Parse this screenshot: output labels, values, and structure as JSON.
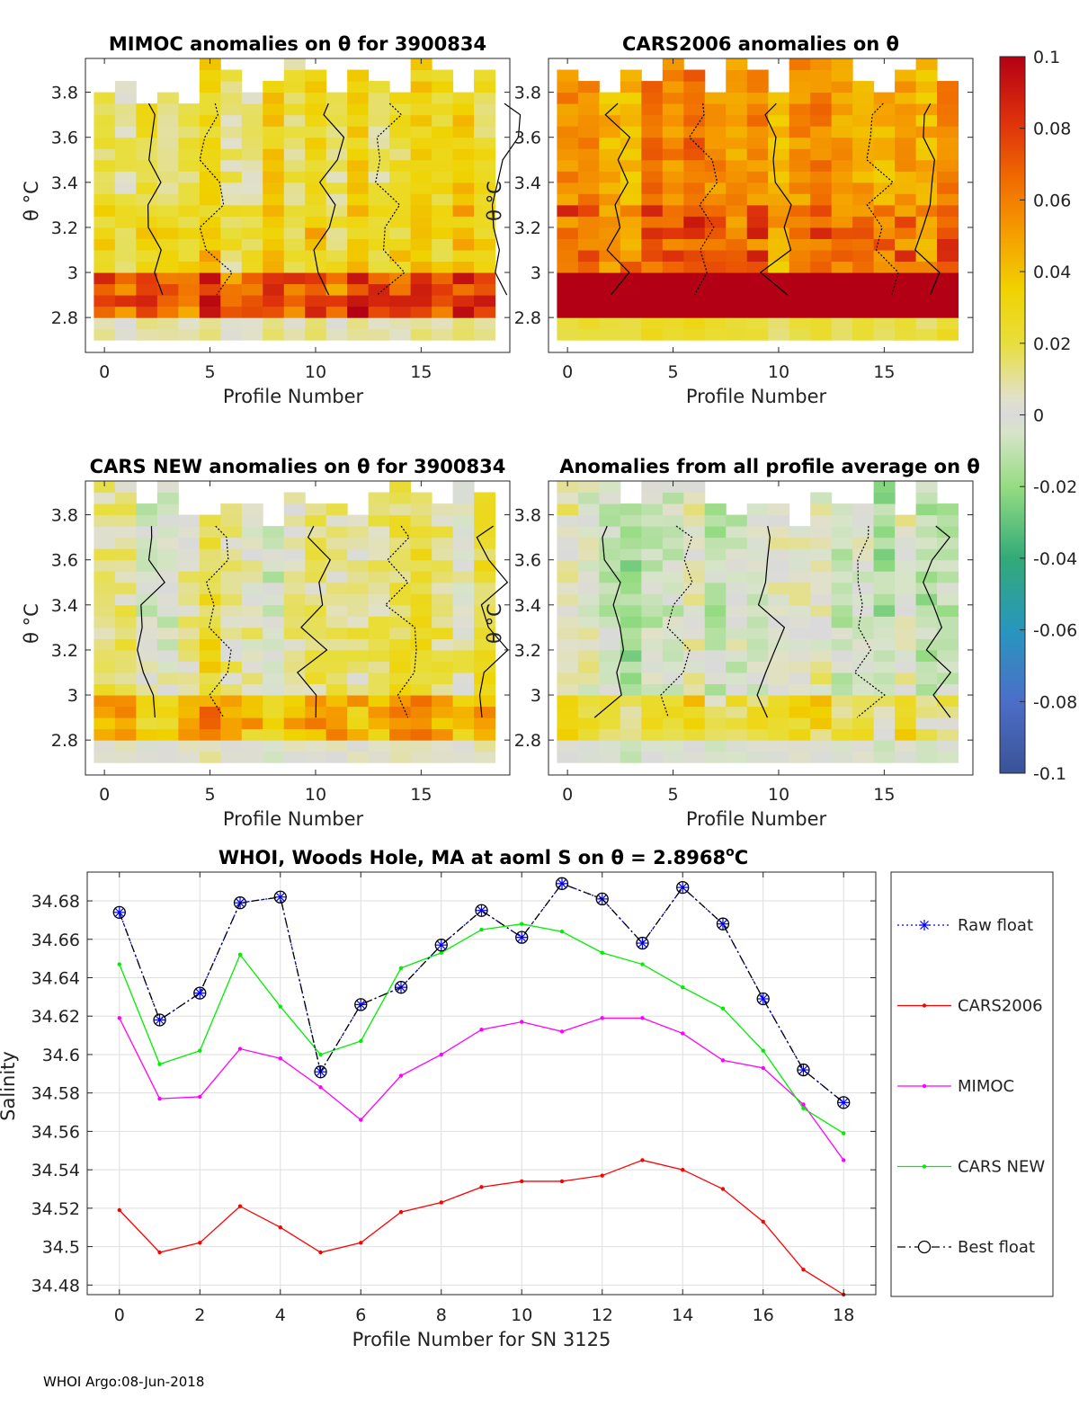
{
  "footer": "WHOI Argo:08-Jun-2018",
  "colorbar": {
    "ticks": [
      "0.1",
      "0.08",
      "0.06",
      "0.04",
      "0.02",
      "0",
      "-0.02",
      "-0.04",
      "-0.06",
      "-0.08",
      "-0.1"
    ],
    "range": [
      -0.1,
      0.1
    ]
  },
  "panels": [
    {
      "title": "MIMOC anomalies on θ  for 3900834",
      "ylabel": "θ °C",
      "xlabel": "Profile Number",
      "xticks": [
        "0",
        "5",
        "10",
        "15"
      ],
      "yticks": [
        "3.8",
        "3.6",
        "3.4",
        "3.2",
        "3",
        "2.8"
      ],
      "level": 0.025,
      "deep": 0.06,
      "seed": 3
    },
    {
      "title": "CARS2006 anomalies on θ",
      "ylabel": "θ °C",
      "xlabel": "Profile Number",
      "xticks": [
        "0",
        "5",
        "10",
        "15"
      ],
      "yticks": [
        "3.8",
        "3.6",
        "3.4",
        "3.2",
        "3",
        "2.8"
      ],
      "level": 0.055,
      "deep": 0.1,
      "seed": 7
    },
    {
      "title": "CARS NEW anomalies on θ for 3900834",
      "ylabel": "θ °C",
      "xlabel": "Profile Number",
      "xticks": [
        "0",
        "5",
        "10",
        "15"
      ],
      "yticks": [
        "3.8",
        "3.6",
        "3.4",
        "3.2",
        "3",
        "2.8"
      ],
      "level": 0.008,
      "deep": 0.04,
      "seed": 11
    },
    {
      "title": "Anomalies from all profile average on θ",
      "ylabel": "θ °C",
      "xlabel": "Profile Number",
      "xticks": [
        "0",
        "5",
        "10",
        "15"
      ],
      "yticks": [
        "3.8",
        "3.6",
        "3.4",
        "3.2",
        "3",
        "2.8"
      ],
      "level": -0.004,
      "deep": 0.03,
      "seed": 17
    }
  ],
  "chart_data": {
    "type": "line",
    "title": "WHOI, Woods Hole, MA at aoml S on θ = 2.8968°C",
    "title_parts": [
      "WHOI, Woods Hole, MA at aoml S on θ = 2.8968",
      "o",
      "C"
    ],
    "xlabel": "Profile Number for SN 3125",
    "ylabel": "Salinity",
    "xlim": [
      -0.8,
      18.8
    ],
    "ylim": [
      34.475,
      34.695
    ],
    "xticks": [
      0,
      2,
      4,
      6,
      8,
      10,
      12,
      14,
      16,
      18
    ],
    "yticks": [
      34.48,
      34.5,
      34.52,
      34.54,
      34.56,
      34.58,
      34.6,
      34.62,
      34.64,
      34.66,
      34.68
    ],
    "ytick_labels": [
      "34.48",
      "34.5",
      "34.52",
      "34.54",
      "34.56",
      "34.58",
      "34.6",
      "34.62",
      "34.64",
      "34.66",
      "34.68"
    ],
    "grid": true,
    "legend_position": "right",
    "x": [
      0,
      1,
      2,
      3,
      4,
      5,
      6,
      7,
      8,
      9,
      10,
      11,
      12,
      13,
      14,
      15,
      16,
      17,
      18
    ],
    "series": [
      {
        "name": "Raw float",
        "color": "#0000ff",
        "style": "dotted",
        "marker": "asterisk",
        "values": [
          34.674,
          34.618,
          34.632,
          34.679,
          34.682,
          34.591,
          34.626,
          34.635,
          34.657,
          34.675,
          34.661,
          34.689,
          34.681,
          34.658,
          34.687,
          34.668,
          34.629,
          34.592,
          34.575
        ]
      },
      {
        "name": "CARS2006",
        "color": "#ff0000",
        "style": "solid",
        "marker": "dot",
        "values": [
          34.519,
          34.497,
          34.502,
          34.521,
          34.51,
          34.497,
          34.502,
          34.518,
          34.523,
          34.531,
          34.534,
          34.534,
          34.537,
          34.545,
          34.54,
          34.53,
          34.513,
          34.488,
          34.475
        ]
      },
      {
        "name": "MIMOC",
        "color": "#ff00ff",
        "style": "solid",
        "marker": "dot",
        "values": [
          34.619,
          34.577,
          34.578,
          34.603,
          34.598,
          34.583,
          34.566,
          34.589,
          34.6,
          34.613,
          34.617,
          34.612,
          34.619,
          34.619,
          34.611,
          34.597,
          34.593,
          34.574,
          34.545
        ]
      },
      {
        "name": "CARS NEW",
        "color": "#00ee00",
        "style": "solid",
        "marker": "dot",
        "values": [
          34.647,
          34.595,
          34.602,
          34.652,
          34.625,
          34.6,
          34.607,
          34.645,
          34.653,
          34.665,
          34.668,
          34.664,
          34.653,
          34.647,
          34.635,
          34.624,
          34.602,
          34.572,
          34.559
        ]
      },
      {
        "name": "Best float",
        "color": "#000000",
        "style": "dashdot",
        "marker": "circle",
        "values": [
          34.674,
          34.618,
          34.632,
          34.679,
          34.682,
          34.591,
          34.626,
          34.635,
          34.657,
          34.675,
          34.661,
          34.689,
          34.681,
          34.658,
          34.687,
          34.668,
          34.629,
          34.592,
          34.575
        ]
      }
    ]
  }
}
